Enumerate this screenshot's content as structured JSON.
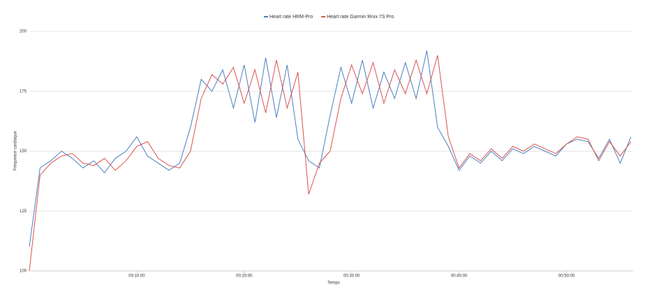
{
  "chart_data": {
    "type": "line",
    "x_label": "Temps",
    "y_label": "Fréquence cardiaque",
    "x": [
      0,
      1,
      2,
      3,
      4,
      5,
      6,
      7,
      8,
      9,
      10,
      11,
      12,
      13,
      14,
      15,
      16,
      17,
      18,
      19,
      20,
      21,
      22,
      23,
      24,
      25,
      26,
      27,
      28,
      29,
      30,
      31,
      32,
      33,
      34,
      35,
      36,
      37,
      38,
      39,
      40,
      41,
      42,
      43,
      44,
      45,
      46,
      47,
      48,
      49,
      50,
      51,
      52,
      53,
      54,
      55,
      56
    ],
    "series": [
      {
        "name": "Heart rate HRM-Pro",
        "color": "#4a7fc1",
        "values": [
          110,
          143,
          146,
          150,
          147,
          143,
          146,
          141,
          147,
          150,
          156,
          148,
          145,
          142,
          145,
          160,
          180,
          175,
          184,
          168,
          186,
          162,
          189,
          164,
          186,
          155,
          146,
          143,
          165,
          185,
          170,
          188,
          168,
          183,
          172,
          187,
          172,
          192,
          160,
          152,
          142,
          148,
          145,
          150,
          146,
          151,
          149,
          152,
          150,
          148,
          153,
          155,
          154,
          147,
          155,
          145,
          156
        ]
      },
      {
        "name": "Heart rate Garmin fénix 7S Pro",
        "color": "#d9534f",
        "values": [
          100,
          140,
          145,
          148,
          149,
          145,
          144,
          147,
          142,
          146,
          152,
          154,
          147,
          144,
          143,
          150,
          172,
          182,
          178,
          185,
          170,
          184,
          166,
          188,
          168,
          183,
          132,
          145,
          150,
          172,
          186,
          174,
          187,
          170,
          184,
          174,
          188,
          174,
          190,
          156,
          143,
          149,
          146,
          151,
          147,
          152,
          150,
          153,
          151,
          149,
          153,
          156,
          155,
          146,
          154,
          148,
          154
        ]
      }
    ],
    "xlim": [
      0,
      56.2
    ],
    "ylim": [
      100,
      200
    ],
    "xticks": [
      {
        "value": 10,
        "label": "00:10:00"
      },
      {
        "value": 20,
        "label": "00:20:00"
      },
      {
        "value": 30,
        "label": "00:30:00"
      },
      {
        "value": 40,
        "label": "00:40:00"
      },
      {
        "value": 50,
        "label": "00:50:00"
      }
    ],
    "yticks": [
      100,
      125,
      150,
      175,
      200
    ],
    "grid": true,
    "legend": "top"
  }
}
